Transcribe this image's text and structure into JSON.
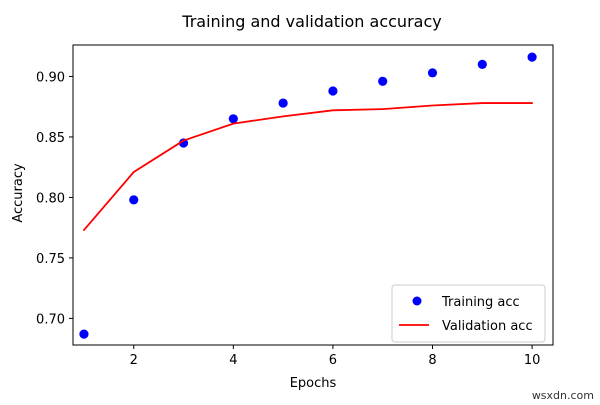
{
  "chart_data": {
    "type": "line",
    "title": "Training and validation accuracy",
    "xlabel": "Epochs",
    "ylabel": "Accuracy",
    "xlim": [
      0.78,
      10.42
    ],
    "ylim": [
      0.678,
      0.926
    ],
    "x_ticks": [
      2,
      4,
      6,
      8,
      10
    ],
    "y_ticks": [
      0.7,
      0.75,
      0.8,
      0.85,
      0.9
    ],
    "y_tick_labels": [
      "0.70",
      "0.75",
      "0.80",
      "0.85",
      "0.90"
    ],
    "grid": false,
    "legend_position": "lower-right",
    "x": [
      1,
      2,
      3,
      4,
      5,
      6,
      7,
      8,
      9,
      10
    ],
    "series": [
      {
        "name": "Training acc",
        "style": "markers",
        "color": "#0000ff",
        "values": [
          0.687,
          0.798,
          0.845,
          0.865,
          0.878,
          0.888,
          0.896,
          0.903,
          0.91,
          0.916
        ]
      },
      {
        "name": "Validation acc",
        "style": "line",
        "color": "#ff0000",
        "values": [
          0.773,
          0.821,
          0.847,
          0.861,
          0.867,
          0.872,
          0.873,
          0.876,
          0.878,
          0.878
        ]
      }
    ]
  },
  "watermark": "wsxdn.com"
}
